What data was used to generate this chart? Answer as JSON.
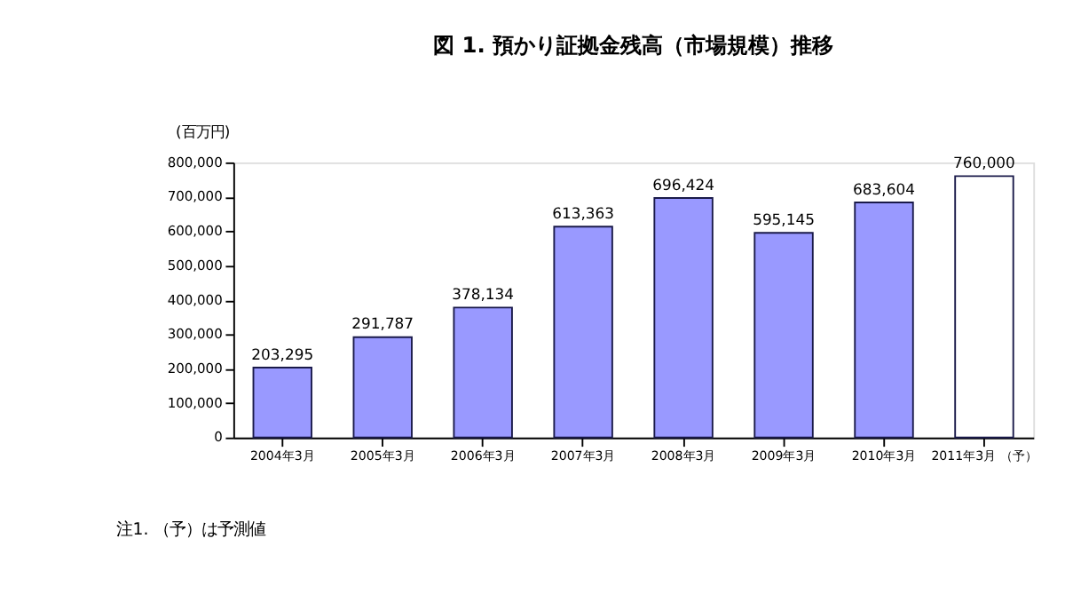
{
  "chart_data": {
    "type": "bar",
    "title": "図 1.  預かり証拠金残高（市場規模）推移",
    "ylabel": "(百万円)",
    "categories": [
      "2004年3月",
      "2005年3月",
      "2006年3月",
      "2007年3月",
      "2008年3月",
      "2009年3月",
      "2010年3月",
      "2011年3月 （予）"
    ],
    "values": [
      203295,
      291787,
      378134,
      613363,
      696424,
      595145,
      683604,
      760000
    ],
    "colors": [
      "#9999ff",
      "#9999ff",
      "#9999ff",
      "#9999ff",
      "#9999ff",
      "#9999ff",
      "#9999ff",
      "#ffffff"
    ],
    "ylim": [
      0,
      800000
    ],
    "yticks": [
      0,
      {
        "value": 100000,
        "label": "100,000"
      },
      {
        "value": 200000,
        "label": "200,000"
      },
      {
        "value": 300000,
        "label": "300,000"
      },
      {
        "value": 400000,
        "label": "400,000"
      },
      {
        "value": 500000,
        "label": "500,000"
      },
      {
        "value": 600000,
        "label": "600,000"
      },
      {
        "value": 700000,
        "label": "700,000"
      },
      {
        "value": 800000,
        "label": "800,000"
      }
    ],
    "value_labels": [
      "203,295",
      "291,787",
      "378,134",
      "613,363",
      "696,424",
      "595,145",
      "683,604",
      "760,000"
    ],
    "grid": false,
    "annotations": [
      "注1. （予）は予測値"
    ]
  }
}
